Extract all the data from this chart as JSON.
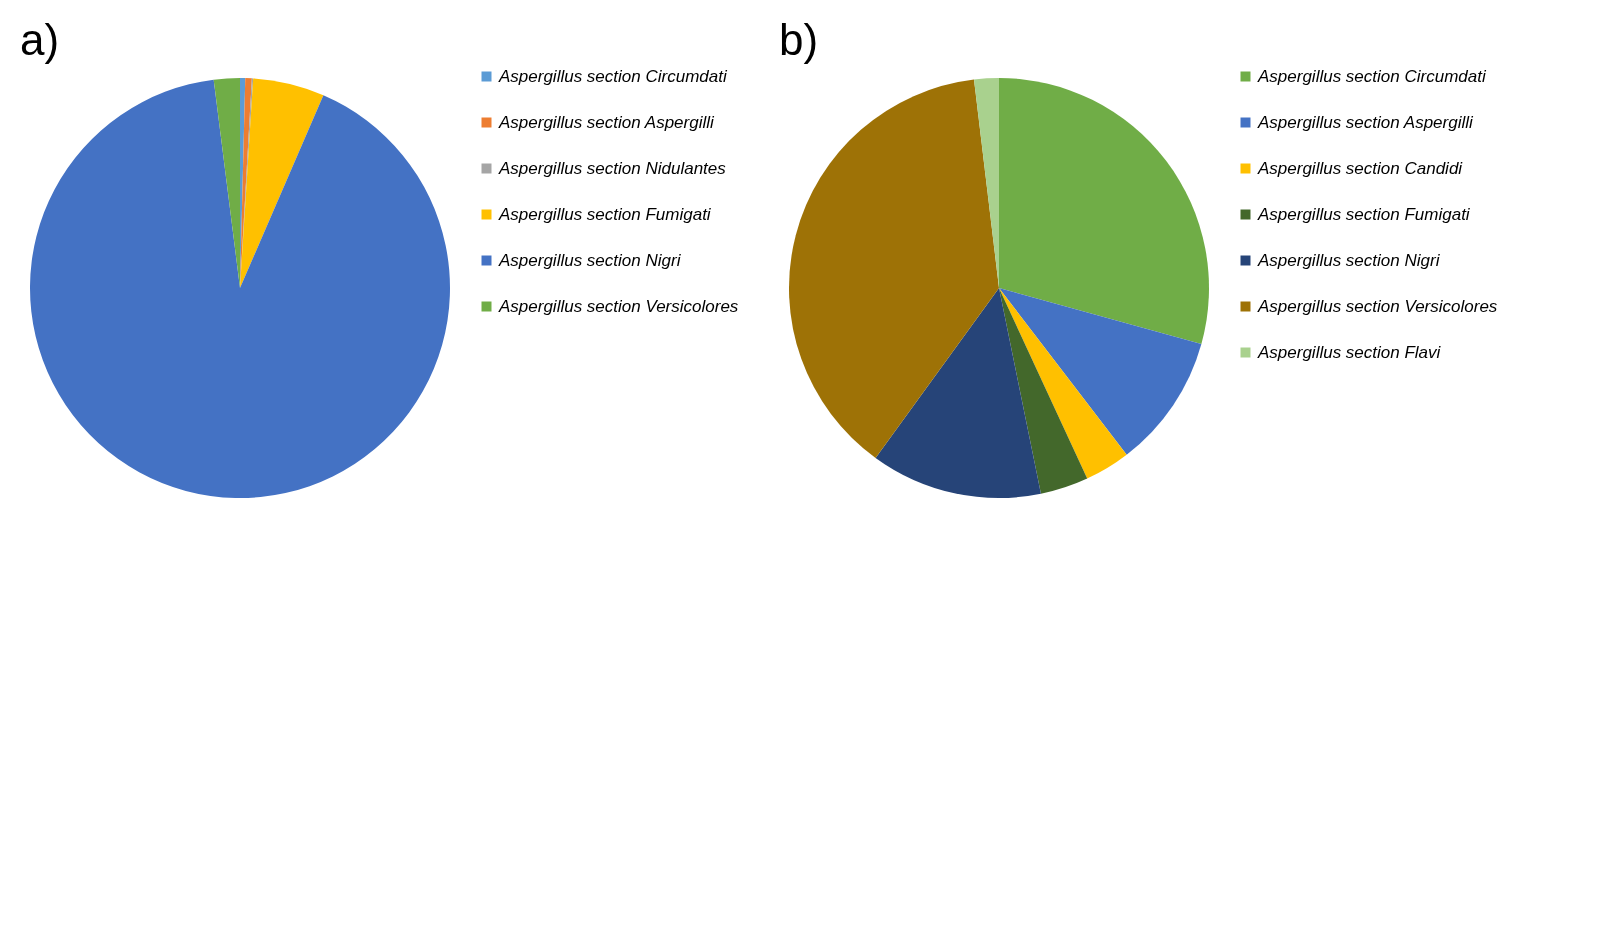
{
  "chart_data": [
    {
      "type": "pie",
      "title": "a)",
      "legend": "right",
      "categories": [
        "Aspergillus section Circumdati",
        "Aspergillus section Aspergilli",
        "Aspergillus section Nidulantes",
        "Aspergillus section Fumigati",
        "Aspergillus section Nigri",
        "Aspergillus section Versicolores"
      ],
      "values": [
        0.4,
        0.5,
        0.1,
        5.5,
        91.5,
        2.0
      ],
      "colors": [
        "#5b9bd5",
        "#ed7d31",
        "#a5a5a5",
        "#ffc000",
        "#4472c4",
        "#70ad47"
      ]
    },
    {
      "type": "pie",
      "title": "b)",
      "legend": "right",
      "categories": [
        "Aspergillus section Circumdati",
        "Aspergillus section Aspergilli",
        "Aspergillus section Candidi",
        "Aspergillus section Fumigati",
        "Aspergillus section Nigri",
        "Aspergillus section Versicolores",
        "Aspergillus section Flavi"
      ],
      "values": [
        29.3,
        10.3,
        3.5,
        3.7,
        13.2,
        38.1,
        1.9
      ],
      "colors": [
        "#70ad47",
        "#4472c4",
        "#ffc000",
        "#43682b",
        "#264478",
        "#9e7206",
        "#a9d18e"
      ]
    }
  ]
}
